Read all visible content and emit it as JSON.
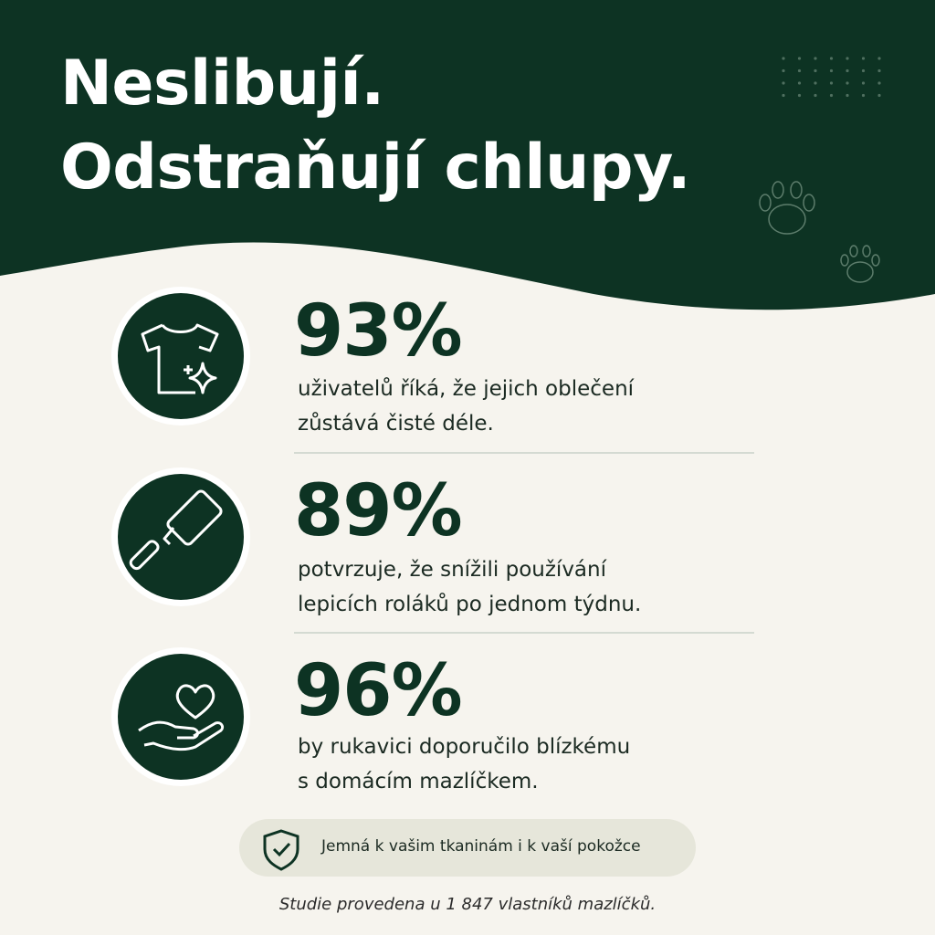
{
  "header": {
    "title": [
      "Neslibují.",
      "Odstraňují chlupy."
    ]
  },
  "stats": [
    {
      "value": "93%",
      "description": [
        "uživatelů říká, že jejich oblečení",
        "zůstává čisté déle."
      ]
    },
    {
      "value": "89%",
      "description": [
        "potvrzuje, že snížili používání",
        "lepicích roláků po jednom týdnu."
      ]
    },
    {
      "value": "96%",
      "description": [
        "by rukavici doporučilo blízkému",
        "s domácím mazlíčkem."
      ]
    }
  ],
  "badge": "Jemná k vašim tkaninám i k vaší pokožce",
  "footnote": "Studie provedena u 1 847 vlastníků mazlíčků."
}
